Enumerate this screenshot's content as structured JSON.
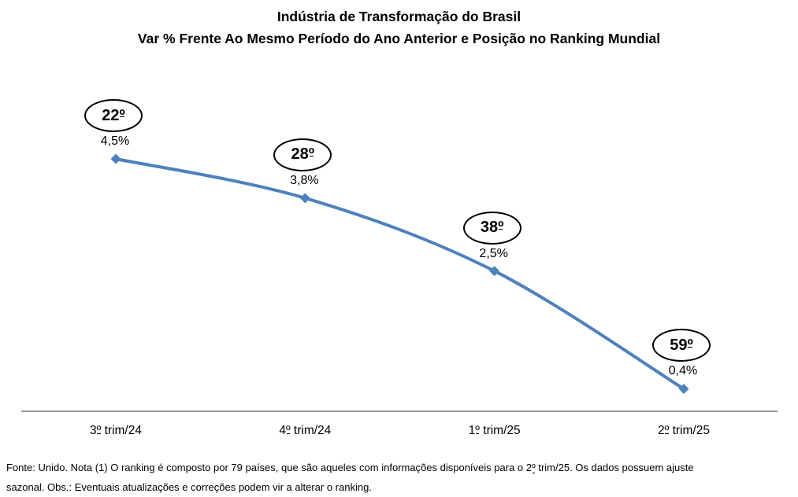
{
  "title": {
    "line1": "Indústria de Transformação do Brasil",
    "line2": "Var % Frente Ao Mesmo Período do Ano Anterior e Posição no Ranking Mundial"
  },
  "chart_data": {
    "type": "line",
    "smooth": true,
    "title": "Indústria de Transformação do Brasil — Var % Frente Ao Mesmo Período do Ano Anterior e Posição no Ranking Mundial",
    "categories": [
      "3º trim/24",
      "4º trim/24",
      "1º trim/25",
      "2º trim/25"
    ],
    "series": [
      {
        "values": [
          4.5,
          3.8,
          2.5,
          0.4
        ],
        "value_labels": [
          "4,5%",
          "3,8%",
          "2,5%",
          "0,4%"
        ],
        "rank_labels": [
          "22º",
          "28º",
          "38º",
          "59º"
        ]
      }
    ],
    "xlabel": "",
    "ylabel": "",
    "ylim": [
      0,
      5
    ],
    "grid": false,
    "legend": "none",
    "line_color": "#4F81BD",
    "marker": "diamond"
  },
  "footer": {
    "line1": "Fonte: Unido. Nota (1) O ranking é composto por 79 países, que são aqueles com informações disponíveis para o 2º trim/25. Os dados possuem ajuste",
    "line2": "sazonal. Obs.: Eventuais atualizações e correções podem vir a alterar o ranking."
  },
  "colors": {
    "line": "#4F81BD",
    "axis": "#595959",
    "annotation_stroke": "#000000",
    "text": "#000000",
    "background": "#FFFFFF"
  }
}
